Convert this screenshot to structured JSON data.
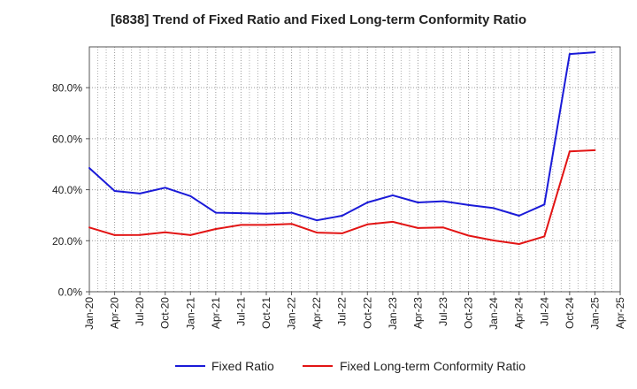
{
  "chart_data": {
    "type": "line",
    "title": "[6838]  Trend of Fixed Ratio and Fixed Long-term Conformity Ratio",
    "xlabel": "",
    "ylabel": "",
    "x_tick_labels": [
      "Jan-20",
      "Apr-20",
      "Jul-20",
      "Oct-20",
      "Jan-21",
      "Apr-21",
      "Jul-21",
      "Oct-21",
      "Jan-22",
      "Apr-22",
      "Jul-22",
      "Oct-22",
      "Jan-23",
      "Apr-23",
      "Jul-23",
      "Oct-23",
      "Jan-24",
      "Apr-24",
      "Jul-24",
      "Oct-24",
      "Jan-25",
      "Apr-25"
    ],
    "y_tick_labels": [
      "0.0%",
      "20.0%",
      "40.0%",
      "60.0%",
      "80.0%"
    ],
    "y_ticks": [
      0,
      20,
      40,
      60,
      80
    ],
    "ylim": [
      0,
      96
    ],
    "grid": true,
    "legend_position": "bottom",
    "x": [
      "Jan-20",
      "Apr-20",
      "Jul-20",
      "Oct-20",
      "Jan-21",
      "Apr-21",
      "Jul-21",
      "Oct-21",
      "Jan-22",
      "Apr-22",
      "Jul-22",
      "Oct-22",
      "Jan-23",
      "Apr-23",
      "Jul-23",
      "Oct-23",
      "Jan-24",
      "Apr-24",
      "Jul-24",
      "Oct-24",
      "Jan-25"
    ],
    "series": [
      {
        "name": "Fixed Ratio",
        "color": "#1a1ad8",
        "values": [
          48.5,
          39.5,
          38.5,
          40.8,
          37.5,
          31.0,
          30.8,
          30.6,
          31.0,
          28.0,
          29.8,
          35.0,
          37.8,
          35.0,
          35.5,
          34.0,
          32.8,
          29.8,
          34.2,
          93.2,
          93.9
        ]
      },
      {
        "name": "Fixed Long-term Conformity Ratio",
        "color": "#e21414",
        "values": [
          25.2,
          22.2,
          22.3,
          23.3,
          22.2,
          24.6,
          26.2,
          26.2,
          26.6,
          23.2,
          22.9,
          26.4,
          27.4,
          25.0,
          25.2,
          22.0,
          20.1,
          18.7,
          21.7,
          55.0,
          55.5
        ]
      }
    ]
  }
}
